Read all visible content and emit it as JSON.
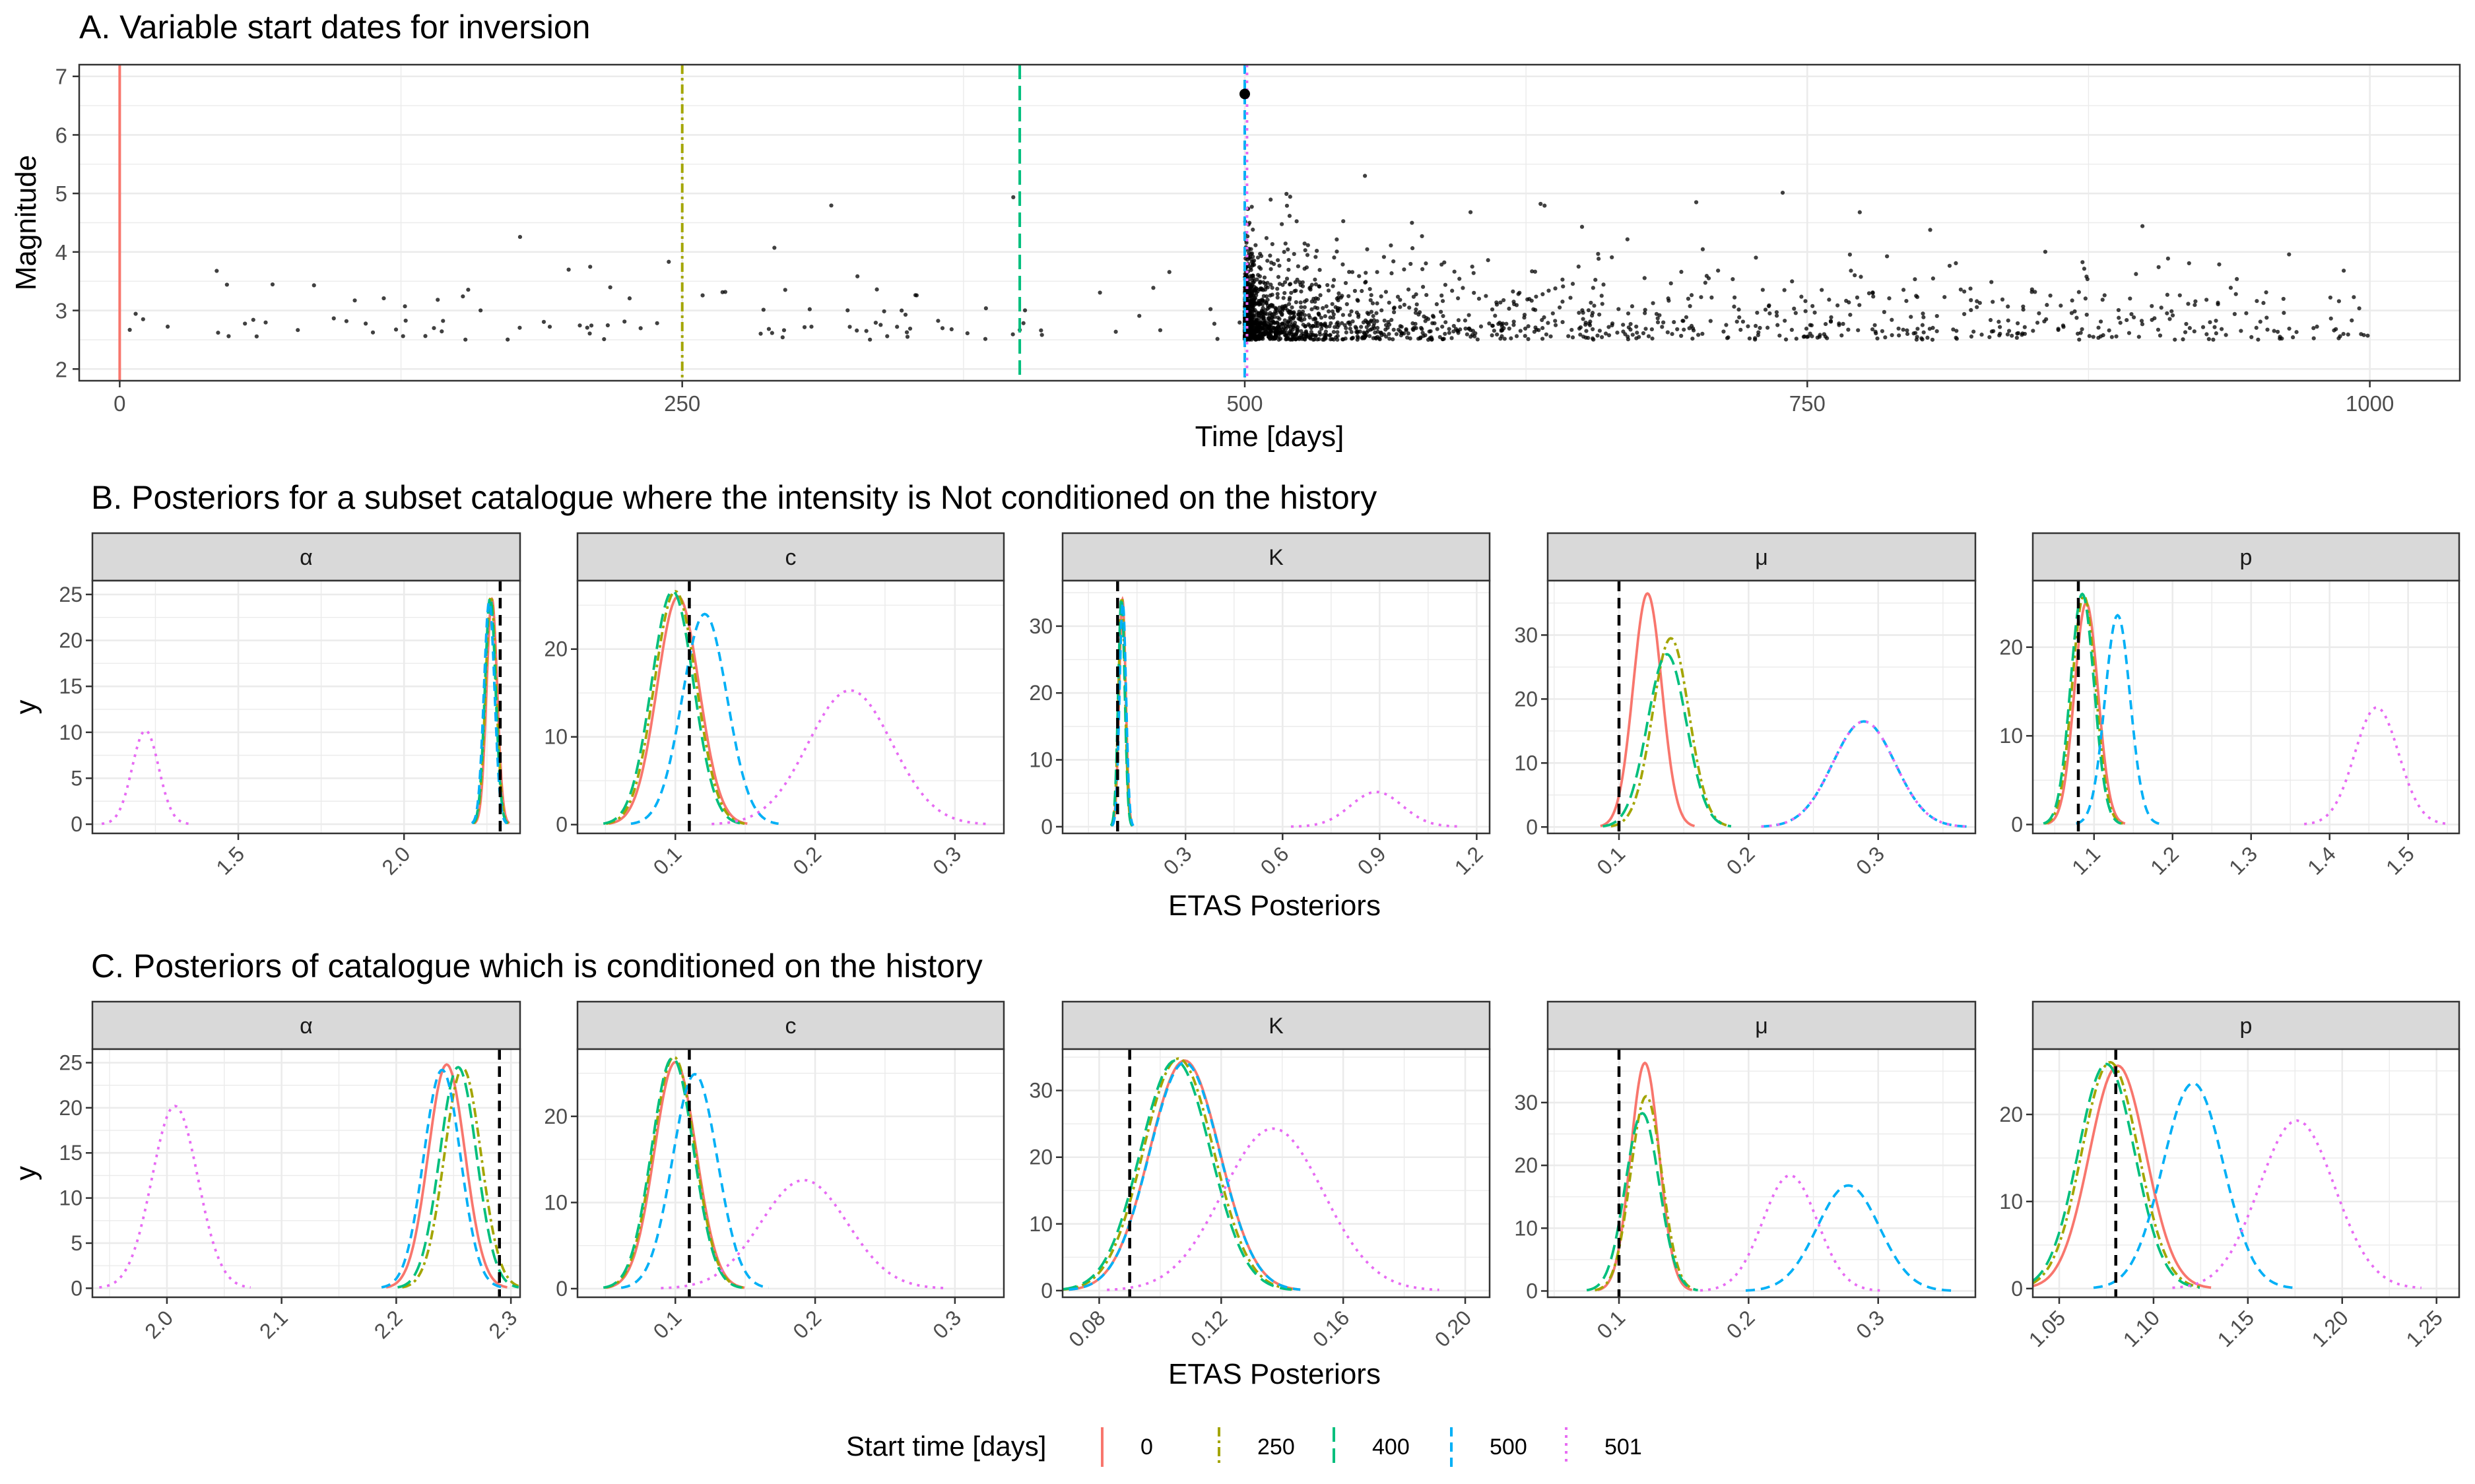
{
  "panels": {
    "a_title": "A. Variable start dates for inversion",
    "b_title": "B. Posteriors for a subset catalogue where the intensity is Not conditioned on the history",
    "c_title": "C. Posteriors of catalogue which is conditioned on the history"
  },
  "legend": {
    "title": "Start time [days]",
    "items": [
      {
        "label": "0",
        "color": "#F8766D",
        "dash": "solid"
      },
      {
        "label": "250",
        "color": "#A3A500",
        "dash": "dotted-dash"
      },
      {
        "label": "400",
        "color": "#00BF7D",
        "dash": "long-dash"
      },
      {
        "label": "500",
        "color": "#00B0F6",
        "dash": "dash"
      },
      {
        "label": "501",
        "color": "#E76BF3",
        "dash": "dot"
      }
    ]
  },
  "chart_data": [
    {
      "id": "A",
      "type": "scatter",
      "title": "A. Variable start dates for inversion",
      "xlabel": "Time [days]",
      "ylabel": "Magnitude",
      "xlim": [
        -18,
        1040
      ],
      "ylim": [
        1.8,
        7.2
      ],
      "xticks": [
        0,
        250,
        500,
        750,
        1000
      ],
      "yticks": [
        2,
        3,
        4,
        5,
        6,
        7
      ],
      "start_lines": [
        {
          "x": 0,
          "series": "0"
        },
        {
          "x": 250,
          "series": "250"
        },
        {
          "x": 400,
          "series": "400"
        },
        {
          "x": 500,
          "series": "500"
        },
        {
          "x": 501,
          "series": "501"
        }
      ],
      "mainshock": {
        "x": 500,
        "y": 6.7
      },
      "events": "approximately 2000 events with magnitude 2.5 to 5.3; sparse background before day 500, dense aftershock sequence after day 500 decaying with time"
    },
    {
      "id": "B",
      "type": "line",
      "xlabel": "ETAS Posteriors",
      "ylabel": "y",
      "facets": [
        {
          "name": "α",
          "xlim": [
            1.06,
            2.35
          ],
          "ylim": [
            -1,
            26.5
          ],
          "xticks": [
            1.5,
            2.0
          ],
          "yticks": [
            0,
            5,
            10,
            15,
            20,
            25
          ],
          "true_value": 2.29,
          "series": [
            {
              "name": "0",
              "mean": 2.265,
              "sd": 0.016,
              "peak": 24.5
            },
            {
              "name": "250",
              "mean": 2.262,
              "sd": 0.016,
              "peak": 24.8
            },
            {
              "name": "400",
              "mean": 2.26,
              "sd": 0.016,
              "peak": 24.7
            },
            {
              "name": "500",
              "mean": 2.257,
              "sd": 0.016,
              "peak": 24.2
            },
            {
              "name": "501",
              "mean": 1.22,
              "sd": 0.04,
              "peak": 10.2
            }
          ]
        },
        {
          "name": "c",
          "xlim": [
            0.03,
            0.335
          ],
          "ylim": [
            -1,
            27.8
          ],
          "xticks": [
            0.1,
            0.2,
            0.3
          ],
          "yticks": [
            0,
            10,
            20
          ],
          "true_value": 0.11,
          "series": [
            {
              "name": "0",
              "mean": 0.102,
              "sd": 0.015,
              "peak": 26.0
            },
            {
              "name": "250",
              "mean": 0.1,
              "sd": 0.015,
              "peak": 26.6
            },
            {
              "name": "400",
              "mean": 0.098,
              "sd": 0.015,
              "peak": 26.6
            },
            {
              "name": "500",
              "mean": 0.121,
              "sd": 0.016,
              "peak": 24.0
            },
            {
              "name": "501",
              "mean": 0.225,
              "sd": 0.03,
              "peak": 15.3
            }
          ]
        },
        {
          "name": "K",
          "xlim": [
            -0.08,
            1.24
          ],
          "ylim": [
            -1,
            36.8
          ],
          "xticks": [
            0.3,
            0.6,
            0.9,
            1.2
          ],
          "yticks": [
            0,
            10,
            20,
            30
          ],
          "true_value": 0.09,
          "series": [
            {
              "name": "0",
              "mean": 0.105,
              "sd": 0.01,
              "peak": 34.0
            },
            {
              "name": "250",
              "mean": 0.103,
              "sd": 0.01,
              "peak": 34.3
            },
            {
              "name": "400",
              "mean": 0.102,
              "sd": 0.01,
              "peak": 34.2
            },
            {
              "name": "500",
              "mean": 0.106,
              "sd": 0.01,
              "peak": 33.5
            },
            {
              "name": "501",
              "mean": 0.89,
              "sd": 0.08,
              "peak": 5.2
            }
          ]
        },
        {
          "name": "μ",
          "xlim": [
            0.045,
            0.375
          ],
          "ylim": [
            -1,
            38.5
          ],
          "xticks": [
            0.1,
            0.2,
            0.3
          ],
          "yticks": [
            0,
            10,
            20,
            30
          ],
          "true_value": 0.1,
          "series": [
            {
              "name": "0",
              "mean": 0.122,
              "sd": 0.011,
              "peak": 36.5
            },
            {
              "name": "250",
              "mean": 0.14,
              "sd": 0.014,
              "peak": 29.5
            },
            {
              "name": "400",
              "mean": 0.137,
              "sd": 0.015,
              "peak": 27.0
            },
            {
              "name": "500",
              "mean": 0.289,
              "sd": 0.024,
              "peak": 16.5
            },
            {
              "name": "501",
              "mean": 0.289,
              "sd": 0.024,
              "peak": 16.5
            }
          ]
        },
        {
          "name": "p",
          "xlim": [
            1.022,
            1.565
          ],
          "ylim": [
            -1,
            27.5
          ],
          "xticks": [
            1.1,
            1.2,
            1.3,
            1.4,
            1.5
          ],
          "yticks": [
            0,
            10,
            20
          ],
          "true_value": 1.08,
          "series": [
            {
              "name": "0",
              "mean": 1.09,
              "sd": 0.015,
              "peak": 25.0
            },
            {
              "name": "250",
              "mean": 1.087,
              "sd": 0.015,
              "peak": 25.8
            },
            {
              "name": "400",
              "mean": 1.085,
              "sd": 0.015,
              "peak": 26.0
            },
            {
              "name": "500",
              "mean": 1.13,
              "sd": 0.016,
              "peak": 23.6
            },
            {
              "name": "501",
              "mean": 1.46,
              "sd": 0.028,
              "peak": 13.2
            }
          ]
        }
      ]
    },
    {
      "id": "C",
      "type": "line",
      "xlabel": "ETAS Posteriors",
      "ylabel": "y",
      "facets": [
        {
          "name": "α",
          "xlim": [
            1.935,
            2.308
          ],
          "ylim": [
            -1,
            26.5
          ],
          "xticks": [
            2.0,
            2.1,
            2.2,
            2.3
          ],
          "yticks": [
            0,
            5,
            10,
            15,
            20,
            25
          ],
          "true_value": 2.29,
          "series": [
            {
              "name": "0",
              "mean": 2.244,
              "sd": 0.016,
              "peak": 24.8
            },
            {
              "name": "250",
              "mean": 2.258,
              "sd": 0.016,
              "peak": 24.4
            },
            {
              "name": "400",
              "mean": 2.254,
              "sd": 0.016,
              "peak": 24.5
            },
            {
              "name": "500",
              "mean": 2.24,
              "sd": 0.016,
              "peak": 24.2
            },
            {
              "name": "501",
              "mean": 2.007,
              "sd": 0.02,
              "peak": 20.2
            }
          ]
        },
        {
          "name": "c",
          "xlim": [
            0.03,
            0.335
          ],
          "ylim": [
            -1,
            27.8
          ],
          "xticks": [
            0.1,
            0.2,
            0.3
          ],
          "yticks": [
            0,
            10,
            20
          ],
          "true_value": 0.11,
          "series": [
            {
              "name": "0",
              "mean": 0.1,
              "sd": 0.015,
              "peak": 26.3
            },
            {
              "name": "250",
              "mean": 0.099,
              "sd": 0.015,
              "peak": 26.9
            },
            {
              "name": "400",
              "mean": 0.098,
              "sd": 0.015,
              "peak": 26.8
            },
            {
              "name": "500",
              "mean": 0.114,
              "sd": 0.016,
              "peak": 24.9
            },
            {
              "name": "501",
              "mean": 0.192,
              "sd": 0.031,
              "peak": 12.6
            }
          ]
        },
        {
          "name": "K",
          "xlim": [
            0.068,
            0.208
          ],
          "ylim": [
            -1,
            36.2
          ],
          "xticks": [
            0.08,
            0.12,
            0.16,
            0.2
          ],
          "yticks": [
            0,
            10,
            20,
            30
          ],
          "true_value": 0.09,
          "series": [
            {
              "name": "0",
              "mean": 0.108,
              "sd": 0.0115,
              "peak": 34.5
            },
            {
              "name": "250",
              "mean": 0.106,
              "sd": 0.0115,
              "peak": 34.8
            },
            {
              "name": "400",
              "mean": 0.105,
              "sd": 0.0115,
              "peak": 34.5
            },
            {
              "name": "500",
              "mean": 0.108,
              "sd": 0.0115,
              "peak": 34.2
            },
            {
              "name": "501",
              "mean": 0.137,
              "sd": 0.0165,
              "peak": 24.3
            }
          ]
        },
        {
          "name": "μ",
          "xlim": [
            0.045,
            0.375
          ],
          "ylim": [
            -1,
            38.5
          ],
          "xticks": [
            0.1,
            0.2,
            0.3
          ],
          "yticks": [
            0,
            10,
            20,
            30
          ],
          "true_value": 0.1,
          "series": [
            {
              "name": "0",
              "mean": 0.12,
              "sd": 0.011,
              "peak": 36.3
            },
            {
              "name": "250",
              "mean": 0.121,
              "sd": 0.012,
              "peak": 31.0
            },
            {
              "name": "400",
              "mean": 0.118,
              "sd": 0.013,
              "peak": 28.3
            },
            {
              "name": "500",
              "mean": 0.277,
              "sd": 0.024,
              "peak": 16.8
            },
            {
              "name": "501",
              "mean": 0.232,
              "sd": 0.021,
              "peak": 18.4
            }
          ]
        },
        {
          "name": "p",
          "xlim": [
            1.036,
            1.262
          ],
          "ylim": [
            -1,
            27.5
          ],
          "xticks": [
            1.05,
            1.1,
            1.15,
            1.2,
            1.25
          ],
          "yticks": [
            0,
            10,
            20
          ],
          "true_value": 1.08,
          "series": [
            {
              "name": "0",
              "mean": 1.081,
              "sd": 0.015,
              "peak": 25.6
            },
            {
              "name": "250",
              "mean": 1.077,
              "sd": 0.015,
              "peak": 26.0
            },
            {
              "name": "400",
              "mean": 1.075,
              "sd": 0.015,
              "peak": 25.8
            },
            {
              "name": "500",
              "mean": 1.121,
              "sd": 0.016,
              "peak": 23.6
            },
            {
              "name": "501",
              "mean": 1.176,
              "sd": 0.02,
              "peak": 19.3
            }
          ]
        }
      ]
    }
  ]
}
